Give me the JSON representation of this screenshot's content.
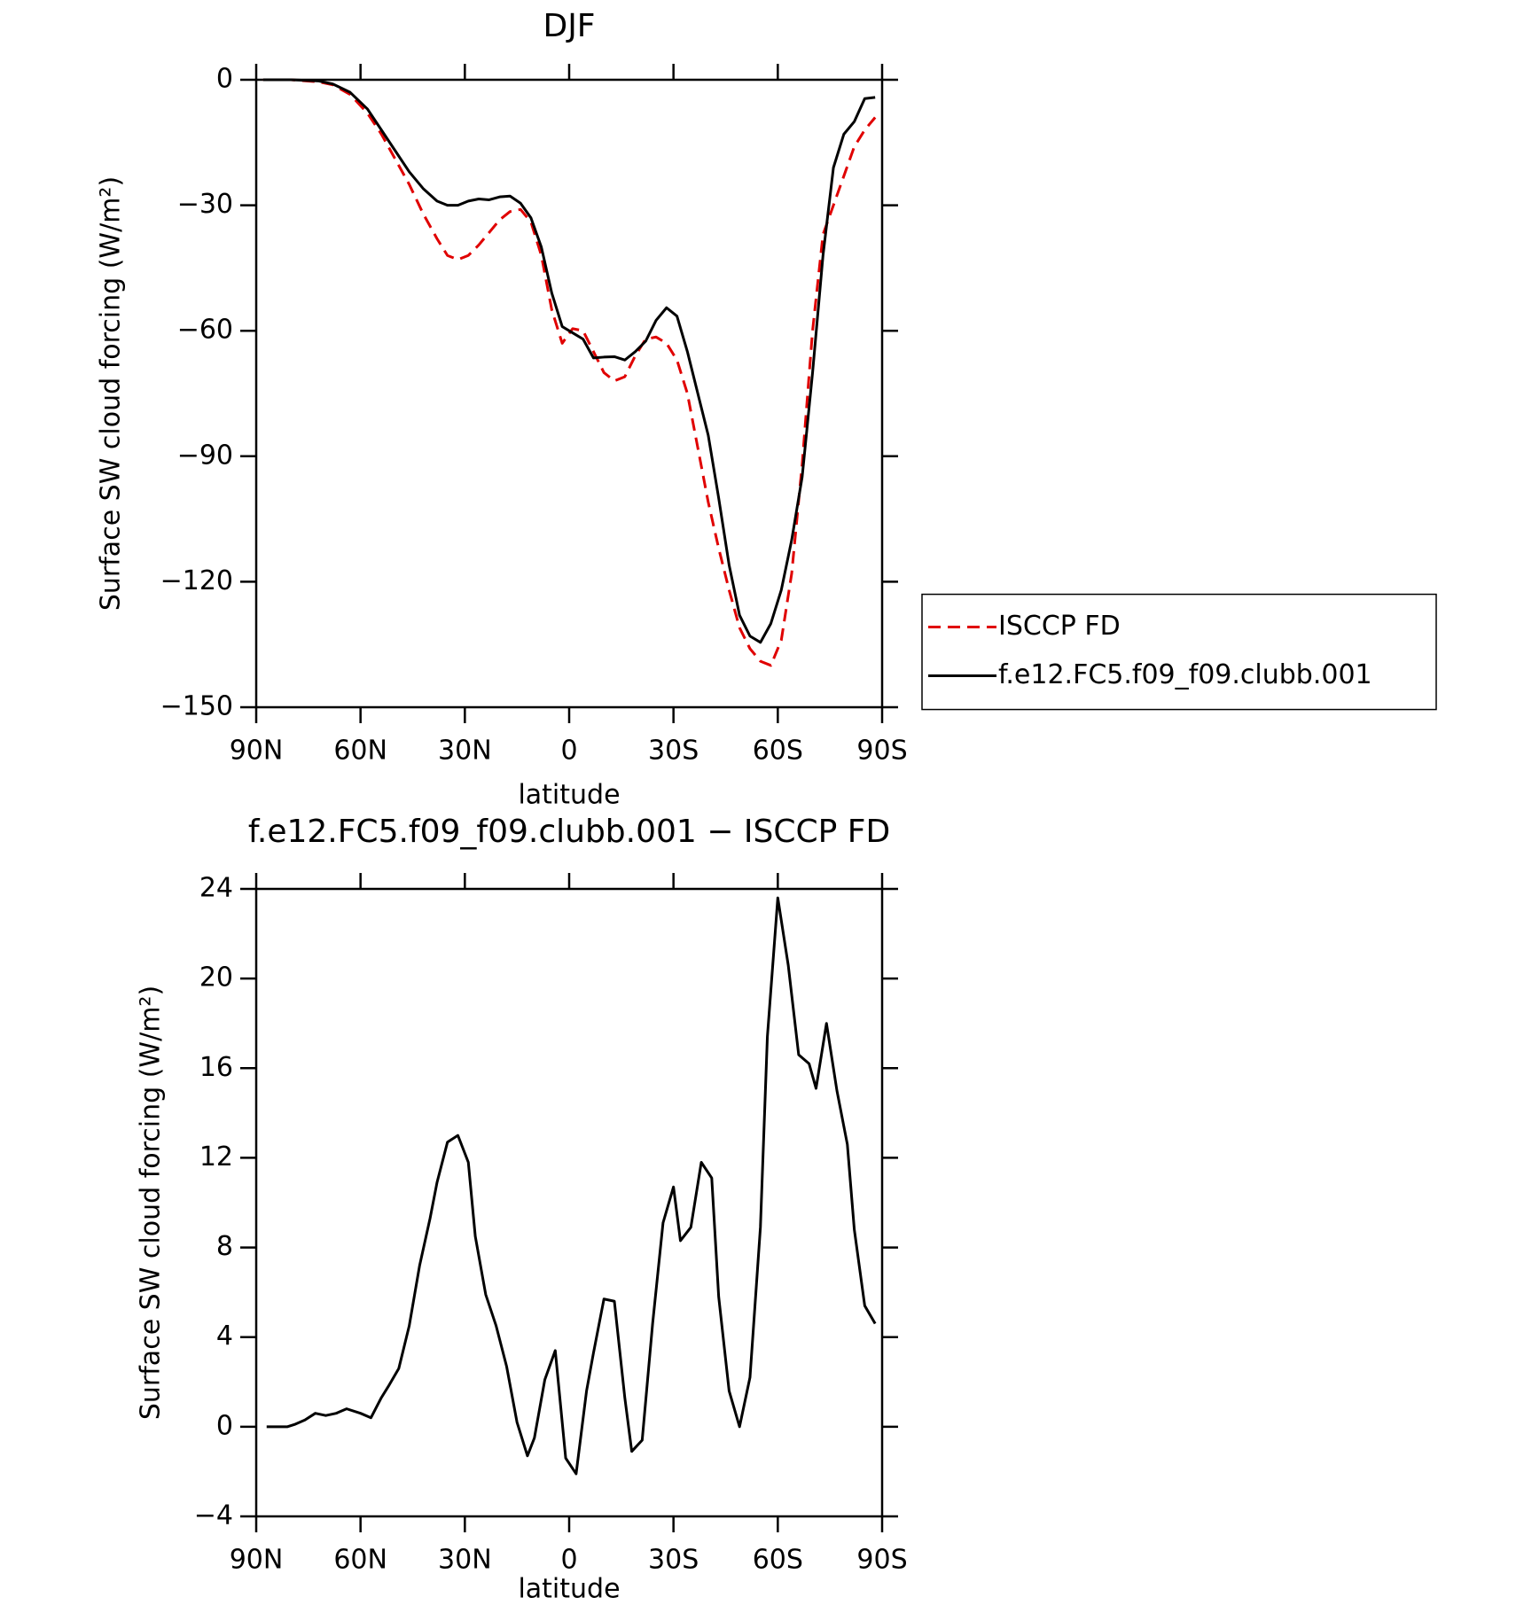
{
  "chart_data": [
    {
      "type": "line",
      "title": "DJF",
      "xlabel": "latitude",
      "ylabel": "Surface SW cloud forcing (W/m²)",
      "xlim": [
        90,
        -90
      ],
      "xticks": [
        {
          "value": 90,
          "label": "90N"
        },
        {
          "value": 60,
          "label": "60N"
        },
        {
          "value": 30,
          "label": "30N"
        },
        0,
        {
          "value": -30,
          "label": "30S"
        },
        {
          "value": -60,
          "label": "60S"
        },
        {
          "value": -90,
          "label": "90S"
        }
      ],
      "ylim": [
        -150,
        0
      ],
      "yticks": [
        0,
        {
          "value": -30,
          "label": "−30"
        },
        {
          "value": -60,
          "label": "−60"
        },
        {
          "value": -90,
          "label": "−90"
        },
        {
          "value": -120,
          "label": "−120"
        },
        {
          "value": -150,
          "label": "−150"
        }
      ],
      "legend": "right",
      "x": [
        88,
        80,
        72,
        68,
        63,
        58,
        54,
        50,
        46,
        42,
        38,
        35,
        32,
        29,
        26,
        23,
        20,
        17,
        14,
        11,
        8,
        5,
        2,
        -1,
        -4,
        -7,
        -10,
        -13,
        -16,
        -19,
        -22,
        -25,
        -28,
        -31,
        -34,
        -37,
        -40,
        -43,
        -46,
        -49,
        -52,
        -55,
        -58,
        -61,
        -64,
        -67,
        -70,
        -73,
        -76,
        -79,
        -82,
        -85,
        -88
      ],
      "series": [
        {
          "name": "ISCCP FD",
          "color": "#e00000",
          "dash": "dashed",
          "values": [
            0,
            0,
            -0.5,
            -1.2,
            -3.5,
            -8,
            -13,
            -19,
            -25,
            -32,
            -38,
            -42,
            -43,
            -42,
            -39.5,
            -36.5,
            -33.5,
            -31.5,
            -31,
            -34,
            -42,
            -55,
            -63,
            -59.5,
            -60,
            -65,
            -70,
            -72,
            -71,
            -66,
            -62,
            -61.5,
            -63,
            -67,
            -75,
            -88,
            -101,
            -112,
            -122,
            -131,
            -136,
            -139,
            -140,
            -134,
            -118,
            -92,
            -60,
            -37,
            -30,
            -23,
            -16,
            -12,
            -9
          ]
        },
        {
          "name": "f.e12.FC5.f09_f09.clubb.001",
          "color": "#000000",
          "values": [
            0,
            0,
            -0.3,
            -1,
            -3,
            -7,
            -12,
            -17,
            -22,
            -26,
            -29,
            -30,
            -30,
            -29,
            -28.5,
            -28.7,
            -28,
            -27.8,
            -29.5,
            -33,
            -40,
            -51,
            -59,
            -60.5,
            -62,
            -66.5,
            -66.3,
            -66.2,
            -67,
            -65,
            -62.5,
            -57.5,
            -54.5,
            -56.5,
            -65,
            -75,
            -85,
            -100,
            -116,
            -128,
            -133,
            -134.5,
            -130,
            -122,
            -110,
            -95,
            -70,
            -42,
            -21,
            -13,
            -10,
            -4.5,
            -4.2
          ]
        }
      ]
    },
    {
      "type": "line",
      "title": "f.e12.FC5.f09_f09.clubb.001 − ISCCP FD",
      "xlabel": "latitude",
      "ylabel": "Surface SW cloud forcing (W/m²)",
      "xlim": [
        90,
        -90
      ],
      "xticks": [
        {
          "value": 90,
          "label": "90N"
        },
        {
          "value": 60,
          "label": "60N"
        },
        {
          "value": 30,
          "label": "30N"
        },
        0,
        {
          "value": -30,
          "label": "30S"
        },
        {
          "value": -60,
          "label": "60S"
        },
        {
          "value": -90,
          "label": "90S"
        }
      ],
      "ylim": [
        -4,
        24
      ],
      "yticks": [
        24,
        20,
        16,
        12,
        8,
        4,
        0,
        {
          "value": -4,
          "label": "−4"
        }
      ],
      "x": [
        87,
        84,
        81,
        79,
        76,
        73,
        70,
        67,
        64,
        60,
        57,
        54,
        52,
        49,
        46,
        43,
        40,
        38,
        35,
        32,
        29,
        27,
        24,
        21,
        18,
        15,
        12,
        10,
        7,
        4,
        1,
        -2,
        -5,
        -7,
        -10,
        -13,
        -16,
        -18,
        -21,
        -24,
        -27,
        -30,
        -32,
        -35,
        -38,
        -41,
        -43,
        -46,
        -49,
        -52,
        -55,
        -57,
        -60,
        -63,
        -66,
        -69,
        -71,
        -74,
        -77,
        -80,
        -82,
        -85,
        -88
      ],
      "series": [
        {
          "color": "#000000",
          "values": [
            0,
            0,
            0,
            0.1,
            0.3,
            0.6,
            0.5,
            0.6,
            0.8,
            0.6,
            0.4,
            1.3,
            1.8,
            2.6,
            4.5,
            7.2,
            9.3,
            10.9,
            12.7,
            13,
            11.8,
            8.5,
            5.9,
            4.5,
            2.7,
            0.2,
            -1.3,
            -0.5,
            2.1,
            3.4,
            -1.4,
            -2.1,
            1.6,
            3.3,
            5.7,
            5.6,
            1.3,
            -1.1,
            -0.6,
            4.6,
            9.1,
            10.7,
            8.3,
            8.9,
            11.8,
            11.1,
            5.8,
            1.6,
            0,
            2.2,
            8.9,
            17.4,
            23.6,
            20.6,
            16.6,
            16.2,
            15.1,
            18,
            15,
            12.6,
            8.8,
            5.4,
            4.6
          ]
        }
      ]
    }
  ]
}
